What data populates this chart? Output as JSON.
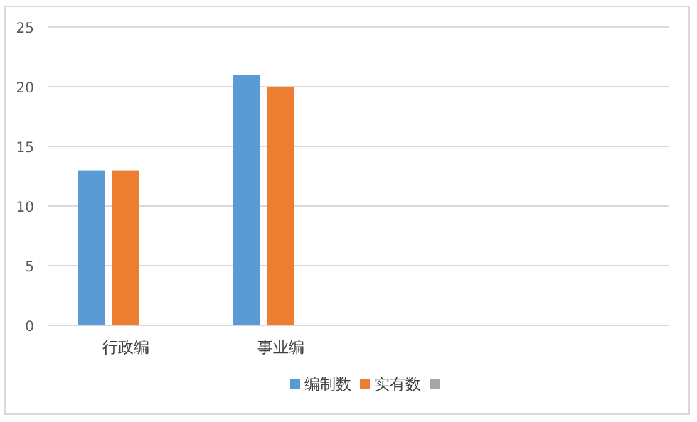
{
  "chart_data": {
    "type": "bar",
    "categories": [
      "行政编",
      "事业编",
      null,
      null
    ],
    "series": [
      {
        "name": "编制数",
        "color": "#5b9bd5",
        "values": [
          13,
          21,
          null,
          null
        ]
      },
      {
        "name": "实有数",
        "color": "#ed7d31",
        "values": [
          13,
          20,
          null,
          null
        ]
      },
      {
        "color": "#a5a5a5",
        "values": [
          null,
          null,
          null,
          null
        ]
      }
    ],
    "ylim": [
      0,
      25
    ],
    "yticks": [
      0,
      5,
      10,
      15,
      20,
      25
    ],
    "grid": "y",
    "legend": "bottom"
  }
}
